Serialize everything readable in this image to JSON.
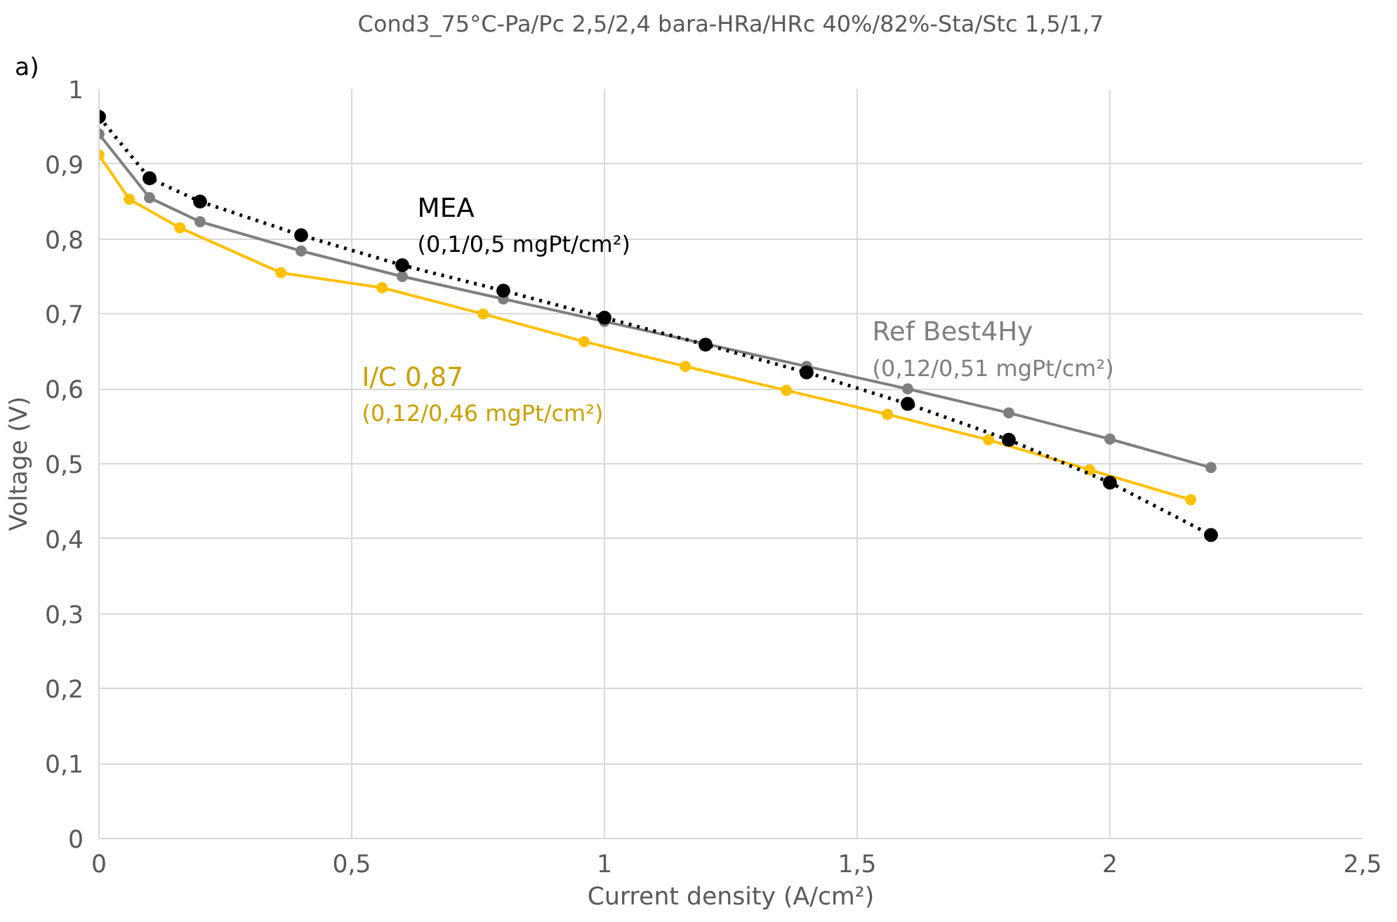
{
  "chart_data": {
    "type": "line",
    "title": "Cond3_75°C-Pa/Pc 2,5/2,4 bara-HRa/HRc 40%/82%-Sta/Stc 1,5/1,7",
    "xlabel": "Current density (A/cm²)",
    "ylabel": "Voltage (V)",
    "xlim": [
      0,
      2.5
    ],
    "xticks": [
      {
        "value": 0,
        "label": "0"
      },
      {
        "value": 0.5,
        "label": "0,5"
      },
      {
        "value": 1,
        "label": "1"
      },
      {
        "value": 1.5,
        "label": "1,5"
      },
      {
        "value": 2,
        "label": "2"
      },
      {
        "value": 2.5,
        "label": "2,5"
      }
    ],
    "ylim": [
      0,
      1
    ],
    "yticks": [
      {
        "value": 0,
        "label": "0"
      },
      {
        "value": 0.1,
        "label": "0,1"
      },
      {
        "value": 0.2,
        "label": "0,2"
      },
      {
        "value": 0.3,
        "label": "0,3"
      },
      {
        "value": 0.4,
        "label": "0,4"
      },
      {
        "value": 0.5,
        "label": "0,5"
      },
      {
        "value": 0.6,
        "label": "0,6"
      },
      {
        "value": 0.7,
        "label": "0,7"
      },
      {
        "value": 0.8,
        "label": "0,8"
      },
      {
        "value": 0.9,
        "label": "0,9"
      },
      {
        "value": 1,
        "label": "1"
      }
    ],
    "grid": true,
    "marker": "circle",
    "series": [
      {
        "name": "Ref Best4Hy",
        "color": "#7f7f7f",
        "line_style": "solid",
        "x": [
          0,
          0.1,
          0.2,
          0.4,
          0.6,
          0.8,
          1.0,
          1.2,
          1.4,
          1.6,
          1.8,
          2.0,
          2.2
        ],
        "values": [
          0.94,
          0.855,
          0.823,
          0.784,
          0.75,
          0.72,
          0.69,
          0.66,
          0.63,
          0.6,
          0.568,
          0.533,
          0.495
        ]
      },
      {
        "name": "I/C 0,87",
        "color": "#ffc000",
        "line_style": "solid",
        "x": [
          0,
          0.06,
          0.16,
          0.36,
          0.56,
          0.76,
          0.96,
          1.16,
          1.36,
          1.56,
          1.76,
          1.96,
          2.16
        ],
        "values": [
          0.912,
          0.853,
          0.815,
          0.755,
          0.735,
          0.7,
          0.663,
          0.63,
          0.598,
          0.566,
          0.532,
          0.492,
          0.452
        ]
      },
      {
        "name": "MEA",
        "color": "#000000",
        "line_style": "dotted",
        "x": [
          0,
          0.1,
          0.2,
          0.4,
          0.6,
          0.8,
          1.0,
          1.2,
          1.4,
          1.6,
          1.8,
          2.0,
          2.2
        ],
        "values": [
          0.963,
          0.881,
          0.85,
          0.805,
          0.765,
          0.731,
          0.695,
          0.659,
          0.622,
          0.58,
          0.532,
          0.475,
          0.405
        ]
      }
    ],
    "annotations": [
      "a)",
      "(0,12/0,51 mgPt/cm²)",
      "(0,12/0,46 mgPt/cm²)",
      "(0,1/0,5 mgPt/cm²)"
    ]
  }
}
